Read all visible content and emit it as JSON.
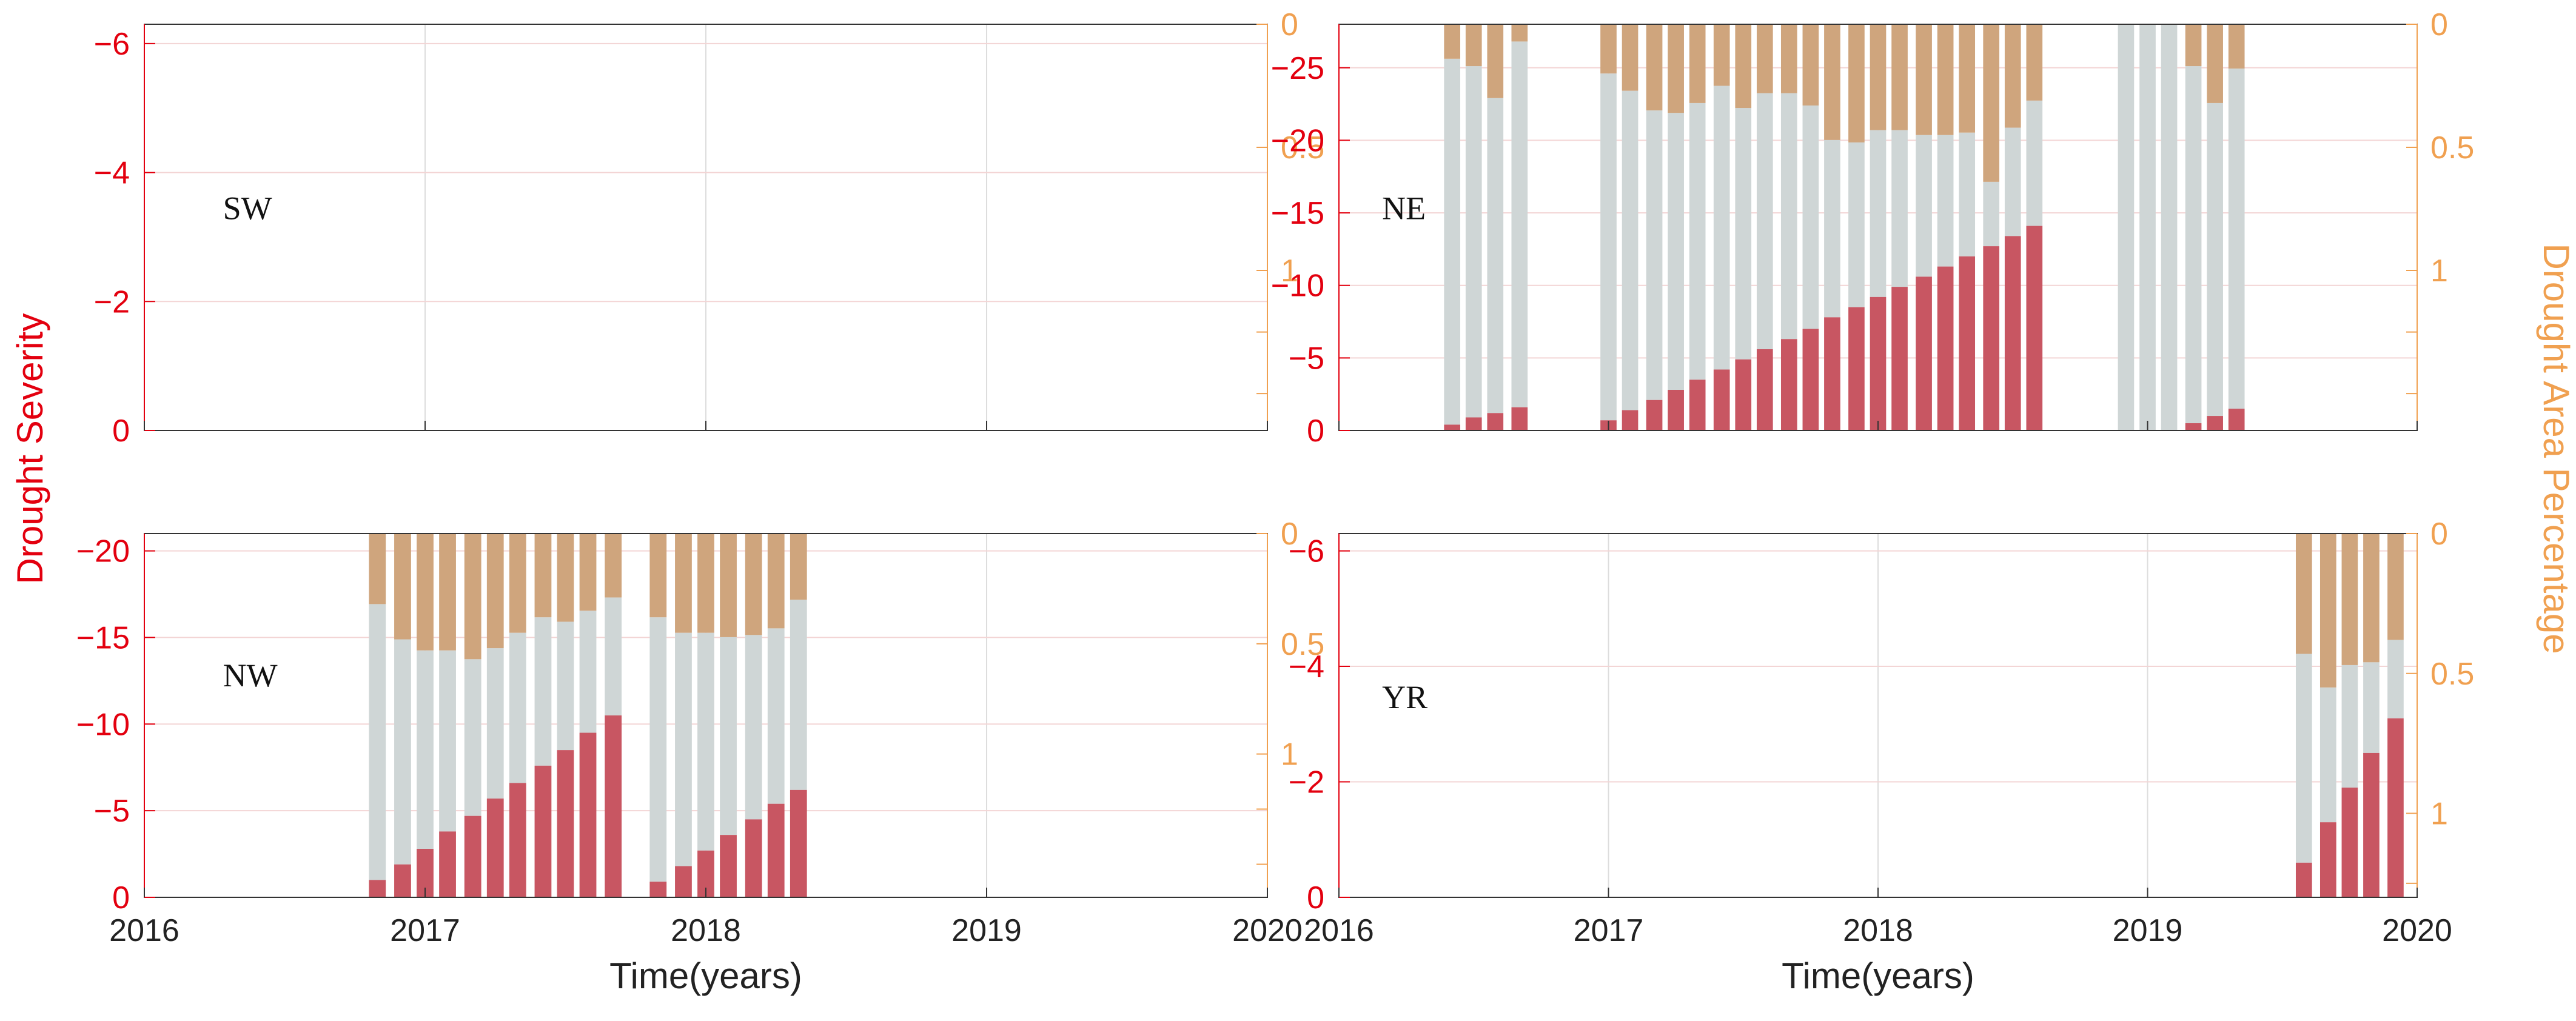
{
  "figure": {
    "ylabel_left": "Drought Severity",
    "ylabel_right": "Drought Area Percentage",
    "xlabel": "Time(years)",
    "colors": {
      "severity": "#e3000f",
      "area": "#f0a050",
      "overlap_gray": "#cfd6d6",
      "severity_over_gray": "#c85662",
      "area_over_gray": "#cfa57d",
      "axis_left": "#e3000f",
      "axis_right": "#f0a050",
      "grid": "#dddddd",
      "grid_h": "#f3d5d5"
    }
  },
  "chart_data": [
    {
      "type": "bar",
      "panel": "SW",
      "label": "SW",
      "xlim": [
        2016,
        2020
      ],
      "xticks": [
        "2016",
        "2017",
        "2018",
        "2019",
        "2020"
      ],
      "ylim_severity": [
        0,
        -6.3
      ],
      "yticks_severity": [
        "0",
        "−2",
        "−4",
        "−6"
      ],
      "ylim_area": [
        1.65,
        0
      ],
      "yticks_area": [
        "0",
        "0.5",
        "1"
      ],
      "show_xlabels": false,
      "show_ylabel_left": true,
      "show_ylabel_right": false,
      "show_xlabel": false,
      "series": []
    },
    {
      "type": "bar",
      "panel": "NE",
      "label": "NE",
      "xlim": [
        2016,
        2020
      ],
      "xticks": [
        "2016",
        "2017",
        "2018",
        "2019",
        "2020"
      ],
      "ylim_severity": [
        0,
        -28
      ],
      "yticks_severity": [
        "0",
        "−5",
        "−10",
        "−15",
        "−20",
        "−25"
      ],
      "ylim_area": [
        1.65,
        0
      ],
      "yticks_area": [
        "0",
        "0.5",
        "1"
      ],
      "show_xlabels": false,
      "show_ylabel_left": false,
      "show_ylabel_right": true,
      "show_xlabel": false,
      "series": [
        {
          "t": 2016.42,
          "severity": -0.4,
          "area": 0.14
        },
        {
          "t": 2016.5,
          "severity": -0.9,
          "area": 0.17
        },
        {
          "t": 2016.58,
          "severity": -1.2,
          "area": 0.3
        },
        {
          "t": 2016.67,
          "severity": -1.6,
          "area": 0.07
        },
        {
          "t": 2017.0,
          "severity": -0.7,
          "area": 0.2
        },
        {
          "t": 2017.08,
          "severity": -1.4,
          "area": 0.27
        },
        {
          "t": 2017.17,
          "severity": -2.1,
          "area": 0.35
        },
        {
          "t": 2017.25,
          "severity": -2.8,
          "area": 0.36
        },
        {
          "t": 2017.33,
          "severity": -3.5,
          "area": 0.32
        },
        {
          "t": 2017.42,
          "severity": -4.2,
          "area": 0.25
        },
        {
          "t": 2017.5,
          "severity": -4.9,
          "area": 0.34
        },
        {
          "t": 2017.58,
          "severity": -5.6,
          "area": 0.28
        },
        {
          "t": 2017.67,
          "severity": -6.3,
          "area": 0.28
        },
        {
          "t": 2017.75,
          "severity": -7.0,
          "area": 0.33
        },
        {
          "t": 2017.83,
          "severity": -7.8,
          "area": 0.47
        },
        {
          "t": 2017.92,
          "severity": -8.5,
          "area": 0.48
        },
        {
          "t": 2018.0,
          "severity": -9.2,
          "area": 0.43
        },
        {
          "t": 2018.08,
          "severity": -9.9,
          "area": 0.43
        },
        {
          "t": 2018.17,
          "severity": -10.6,
          "area": 0.45
        },
        {
          "t": 2018.25,
          "severity": -11.3,
          "area": 0.45
        },
        {
          "t": 2018.33,
          "severity": -12.0,
          "area": 0.44
        },
        {
          "t": 2018.42,
          "severity": -12.7,
          "area": 0.64
        },
        {
          "t": 2018.5,
          "severity": -13.4,
          "area": 0.42
        },
        {
          "t": 2018.58,
          "severity": -14.1,
          "area": 0.31
        },
        {
          "t": 2018.92,
          "severity": 0,
          "area": 0
        },
        {
          "t": 2019.0,
          "severity": 0,
          "area": 0
        },
        {
          "t": 2019.08,
          "severity": 0,
          "area": 0
        },
        {
          "t": 2019.17,
          "severity": -0.5,
          "area": 0.17
        },
        {
          "t": 2019.25,
          "severity": -1.0,
          "area": 0.32
        },
        {
          "t": 2019.33,
          "severity": -1.5,
          "area": 0.18
        }
      ]
    },
    {
      "type": "bar",
      "panel": "NW",
      "label": "NW",
      "xlim": [
        2016,
        2020
      ],
      "xticks": [
        "2016",
        "2017",
        "2018",
        "2019",
        "2020"
      ],
      "ylim_severity": [
        0,
        -21
      ],
      "yticks_severity": [
        "0",
        "−5",
        "−10",
        "−15",
        "−20"
      ],
      "ylim_area": [
        1.65,
        0
      ],
      "yticks_area": [
        "0",
        "0.5",
        "1"
      ],
      "show_xlabels": true,
      "show_ylabel_left": false,
      "show_ylabel_right": false,
      "show_xlabel": true,
      "series": [
        {
          "t": 2016.83,
          "severity": -1.0,
          "area": 0.32
        },
        {
          "t": 2016.92,
          "severity": -1.9,
          "area": 0.48
        },
        {
          "t": 2017.0,
          "severity": -2.8,
          "area": 0.53
        },
        {
          "t": 2017.08,
          "severity": -3.8,
          "area": 0.53
        },
        {
          "t": 2017.17,
          "severity": -4.7,
          "area": 0.57
        },
        {
          "t": 2017.25,
          "severity": -5.7,
          "area": 0.52
        },
        {
          "t": 2017.33,
          "severity": -6.6,
          "area": 0.45
        },
        {
          "t": 2017.42,
          "severity": -7.6,
          "area": 0.38
        },
        {
          "t": 2017.5,
          "severity": -8.5,
          "area": 0.4
        },
        {
          "t": 2017.58,
          "severity": -9.5,
          "area": 0.35
        },
        {
          "t": 2017.67,
          "severity": -10.5,
          "area": 0.29
        },
        {
          "t": 2017.83,
          "severity": -0.9,
          "area": 0.38
        },
        {
          "t": 2017.92,
          "severity": -1.8,
          "area": 0.45
        },
        {
          "t": 2018.0,
          "severity": -2.7,
          "area": 0.45
        },
        {
          "t": 2018.08,
          "severity": -3.6,
          "area": 0.47
        },
        {
          "t": 2018.17,
          "severity": -4.5,
          "area": 0.46
        },
        {
          "t": 2018.25,
          "severity": -5.4,
          "area": 0.43
        },
        {
          "t": 2018.33,
          "severity": -6.2,
          "area": 0.3
        }
      ]
    },
    {
      "type": "bar",
      "panel": "YR",
      "label": "YR",
      "xlim": [
        2016,
        2020
      ],
      "xticks": [
        "2016",
        "2017",
        "2018",
        "2019",
        "2020"
      ],
      "ylim_severity": [
        0,
        -6.3
      ],
      "yticks_severity": [
        "0",
        "−2",
        "−4",
        "−6"
      ],
      "ylim_area": [
        1.3,
        0
      ],
      "yticks_area": [
        "0",
        "0.5",
        "1"
      ],
      "show_xlabels": true,
      "show_ylabel_left": false,
      "show_ylabel_right": false,
      "show_xlabel": true,
      "series": [
        {
          "t": 2019.58,
          "severity": -0.6,
          "area": 0.43
        },
        {
          "t": 2019.67,
          "severity": -1.3,
          "area": 0.55
        },
        {
          "t": 2019.75,
          "severity": -1.9,
          "area": 0.47
        },
        {
          "t": 2019.83,
          "severity": -2.5,
          "area": 0.46
        },
        {
          "t": 2019.92,
          "severity": -3.1,
          "area": 0.38
        }
      ]
    }
  ]
}
